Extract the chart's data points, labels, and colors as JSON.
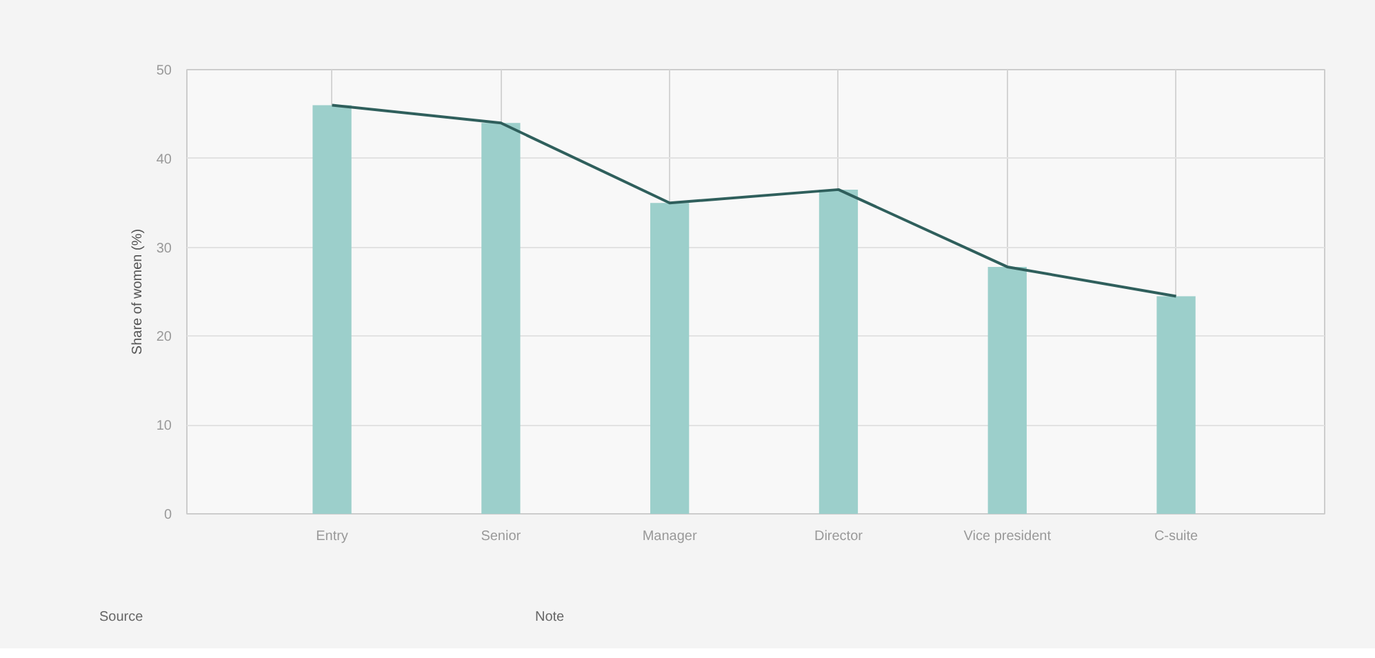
{
  "chart_data": {
    "type": "bar",
    "ylabel": "Share of women (%)",
    "categories": [
      "Entry",
      "Senior",
      "Manager",
      "Director",
      "Vice president",
      "C-suite"
    ],
    "series": [
      {
        "color": "#9ccfcb",
        "values": [
          46,
          44,
          35,
          36.5,
          27.8,
          24.5
        ]
      },
      {
        "type": "line",
        "color": "#2f5f5c",
        "values": [
          46,
          44,
          35,
          36.5,
          27.8,
          24.5
        ]
      }
    ],
    "ylim": [
      0,
      50
    ],
    "yticks": [
      0,
      10,
      20,
      30,
      40,
      50
    ],
    "grid": true,
    "marker": "none",
    "line_style": "solid",
    "annotations": [
      "Source",
      "Note"
    ]
  }
}
